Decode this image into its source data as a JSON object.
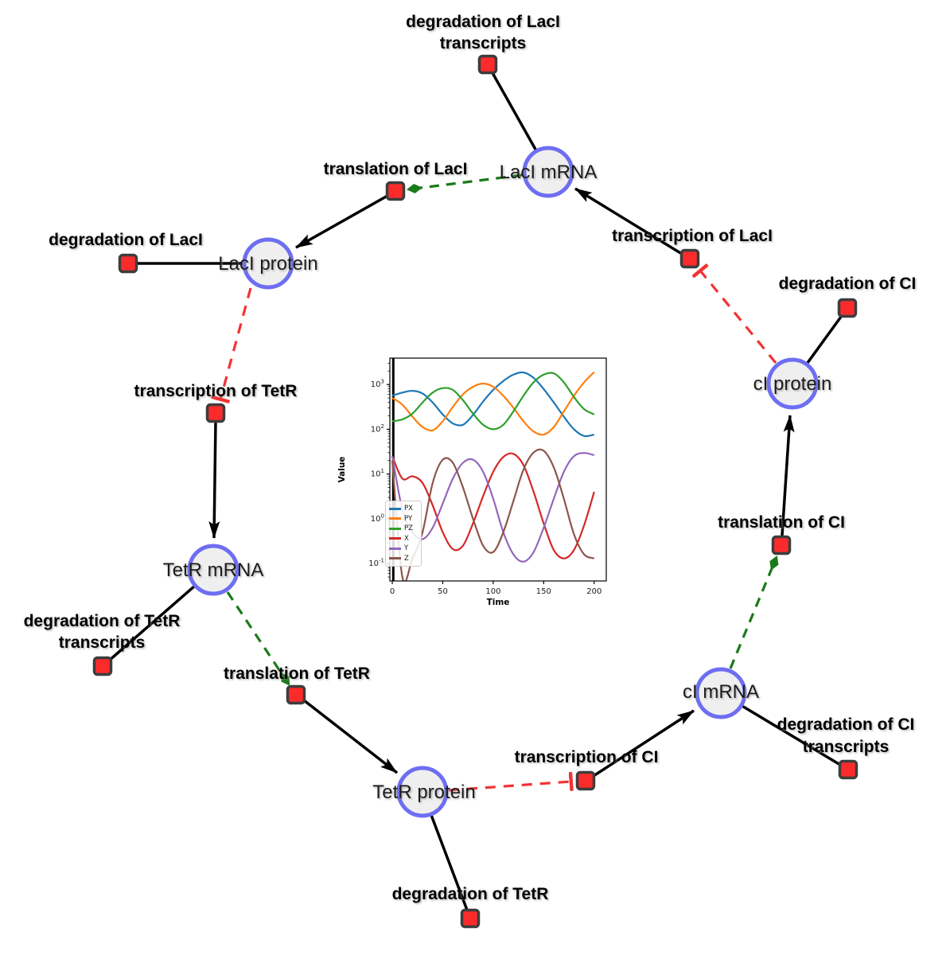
{
  "diagram_title": "repressilator gene regulatory network",
  "species": {
    "laci_mrna": "LacI mRNA",
    "laci_protein": "LacI protein",
    "tetr_mrna": "TetR mRNA",
    "tetr_protein": "TetR protein",
    "ci_mrna": "cI mRNA",
    "ci_protein": "cI protein"
  },
  "reactions": {
    "degradation_laci_transcripts_l1": "degradation of LacI",
    "degradation_laci_transcripts_l2": "transcripts",
    "translation_laci": "translation of LacI",
    "transcription_laci": "transcription of LacI",
    "degradation_laci": "degradation of LacI",
    "transcription_tetr": "transcription of TetR",
    "degradation_tetr_transcripts_l1": "degradation of TetR",
    "degradation_tetr_transcripts_l2": "transcripts",
    "translation_tetr": "translation of TetR",
    "degradation_tetr": "degradation of TetR",
    "transcription_ci": "transcription of CI",
    "degradation_ci_transcripts_l1": "degradation of CI",
    "degradation_ci_transcripts_l2": "transcripts",
    "translation_ci": "translation of CI",
    "degradation_ci": "degradation of CI"
  },
  "colors": {
    "species_fill": "#efefef",
    "species_border": "#6e6ef2",
    "reaction_fill": "#fb2b2b",
    "reaction_border": "#3d3d3d",
    "edge_black": "#000000",
    "activation_green": "#1a7a1a",
    "inhibition_red": "#f23333"
  },
  "chart_data": {
    "type": "line",
    "title": "",
    "xlabel": "Time",
    "ylabel": "Value",
    "x_ticks": [
      0,
      50,
      100,
      150,
      200
    ],
    "y_ticks_exponents": [
      -1,
      0,
      1,
      2,
      3
    ],
    "y_scale": "log",
    "xlim": [
      -2.4,
      212
    ],
    "ylog_lim": [
      -1.39,
      3.59
    ],
    "legend_position": "lower left",
    "vline_x": 1,
    "x": [
      0,
      10,
      20,
      30,
      40,
      50,
      60,
      70,
      80,
      90,
      100,
      110,
      120,
      130,
      140,
      150,
      160,
      170,
      180,
      190,
      200
    ],
    "series": [
      {
        "name": "PX",
        "color": "#1f77b4",
        "values": [
          562,
          661,
          724,
          631,
          398,
          214,
          135,
          126,
          209,
          417,
          759,
          1200,
          1660,
          1860,
          1410,
          794,
          398,
          191,
          100,
          71,
          76
        ]
      },
      {
        "name": "PY",
        "color": "#ff7f0e",
        "values": [
          501,
          355,
          191,
          112,
          95,
          151,
          316,
          603,
          891,
          1050,
          891,
          562,
          302,
          151,
          89,
          76,
          112,
          251,
          562,
          1120,
          1900
        ]
      },
      {
        "name": "PZ",
        "color": "#2ca02c",
        "values": [
          151,
          166,
          224,
          398,
          661,
          832,
          759,
          447,
          224,
          126,
          100,
          126,
          251,
          562,
          1120,
          1660,
          1780,
          1120,
          525,
          282,
          214
        ]
      },
      {
        "name": "X",
        "color": "#d62728",
        "values": [
          25,
          7.9,
          8.9,
          6.3,
          2.0,
          0.5,
          0.21,
          0.25,
          0.79,
          3.2,
          11.2,
          24,
          28.2,
          15.8,
          4.0,
          0.79,
          0.2,
          0.13,
          0.2,
          0.71,
          4.0
        ]
      },
      {
        "name": "Y",
        "color": "#9467bd",
        "values": [
          25,
          1.6,
          0.5,
          0.35,
          0.63,
          2.2,
          7.9,
          17.8,
          20.9,
          11.2,
          2.8,
          0.5,
          0.16,
          0.11,
          0.18,
          0.63,
          2.8,
          11.2,
          25.1,
          29.5,
          26.3
        ]
      },
      {
        "name": "Z",
        "color": "#8c564b",
        "values": [
          20,
          0.05,
          0.13,
          0.5,
          6.3,
          20.9,
          17.8,
          5.0,
          1.0,
          0.25,
          0.18,
          0.5,
          2.5,
          12.6,
          30.2,
          33.1,
          14.1,
          2.8,
          0.45,
          0.16,
          0.13
        ]
      }
    ]
  }
}
